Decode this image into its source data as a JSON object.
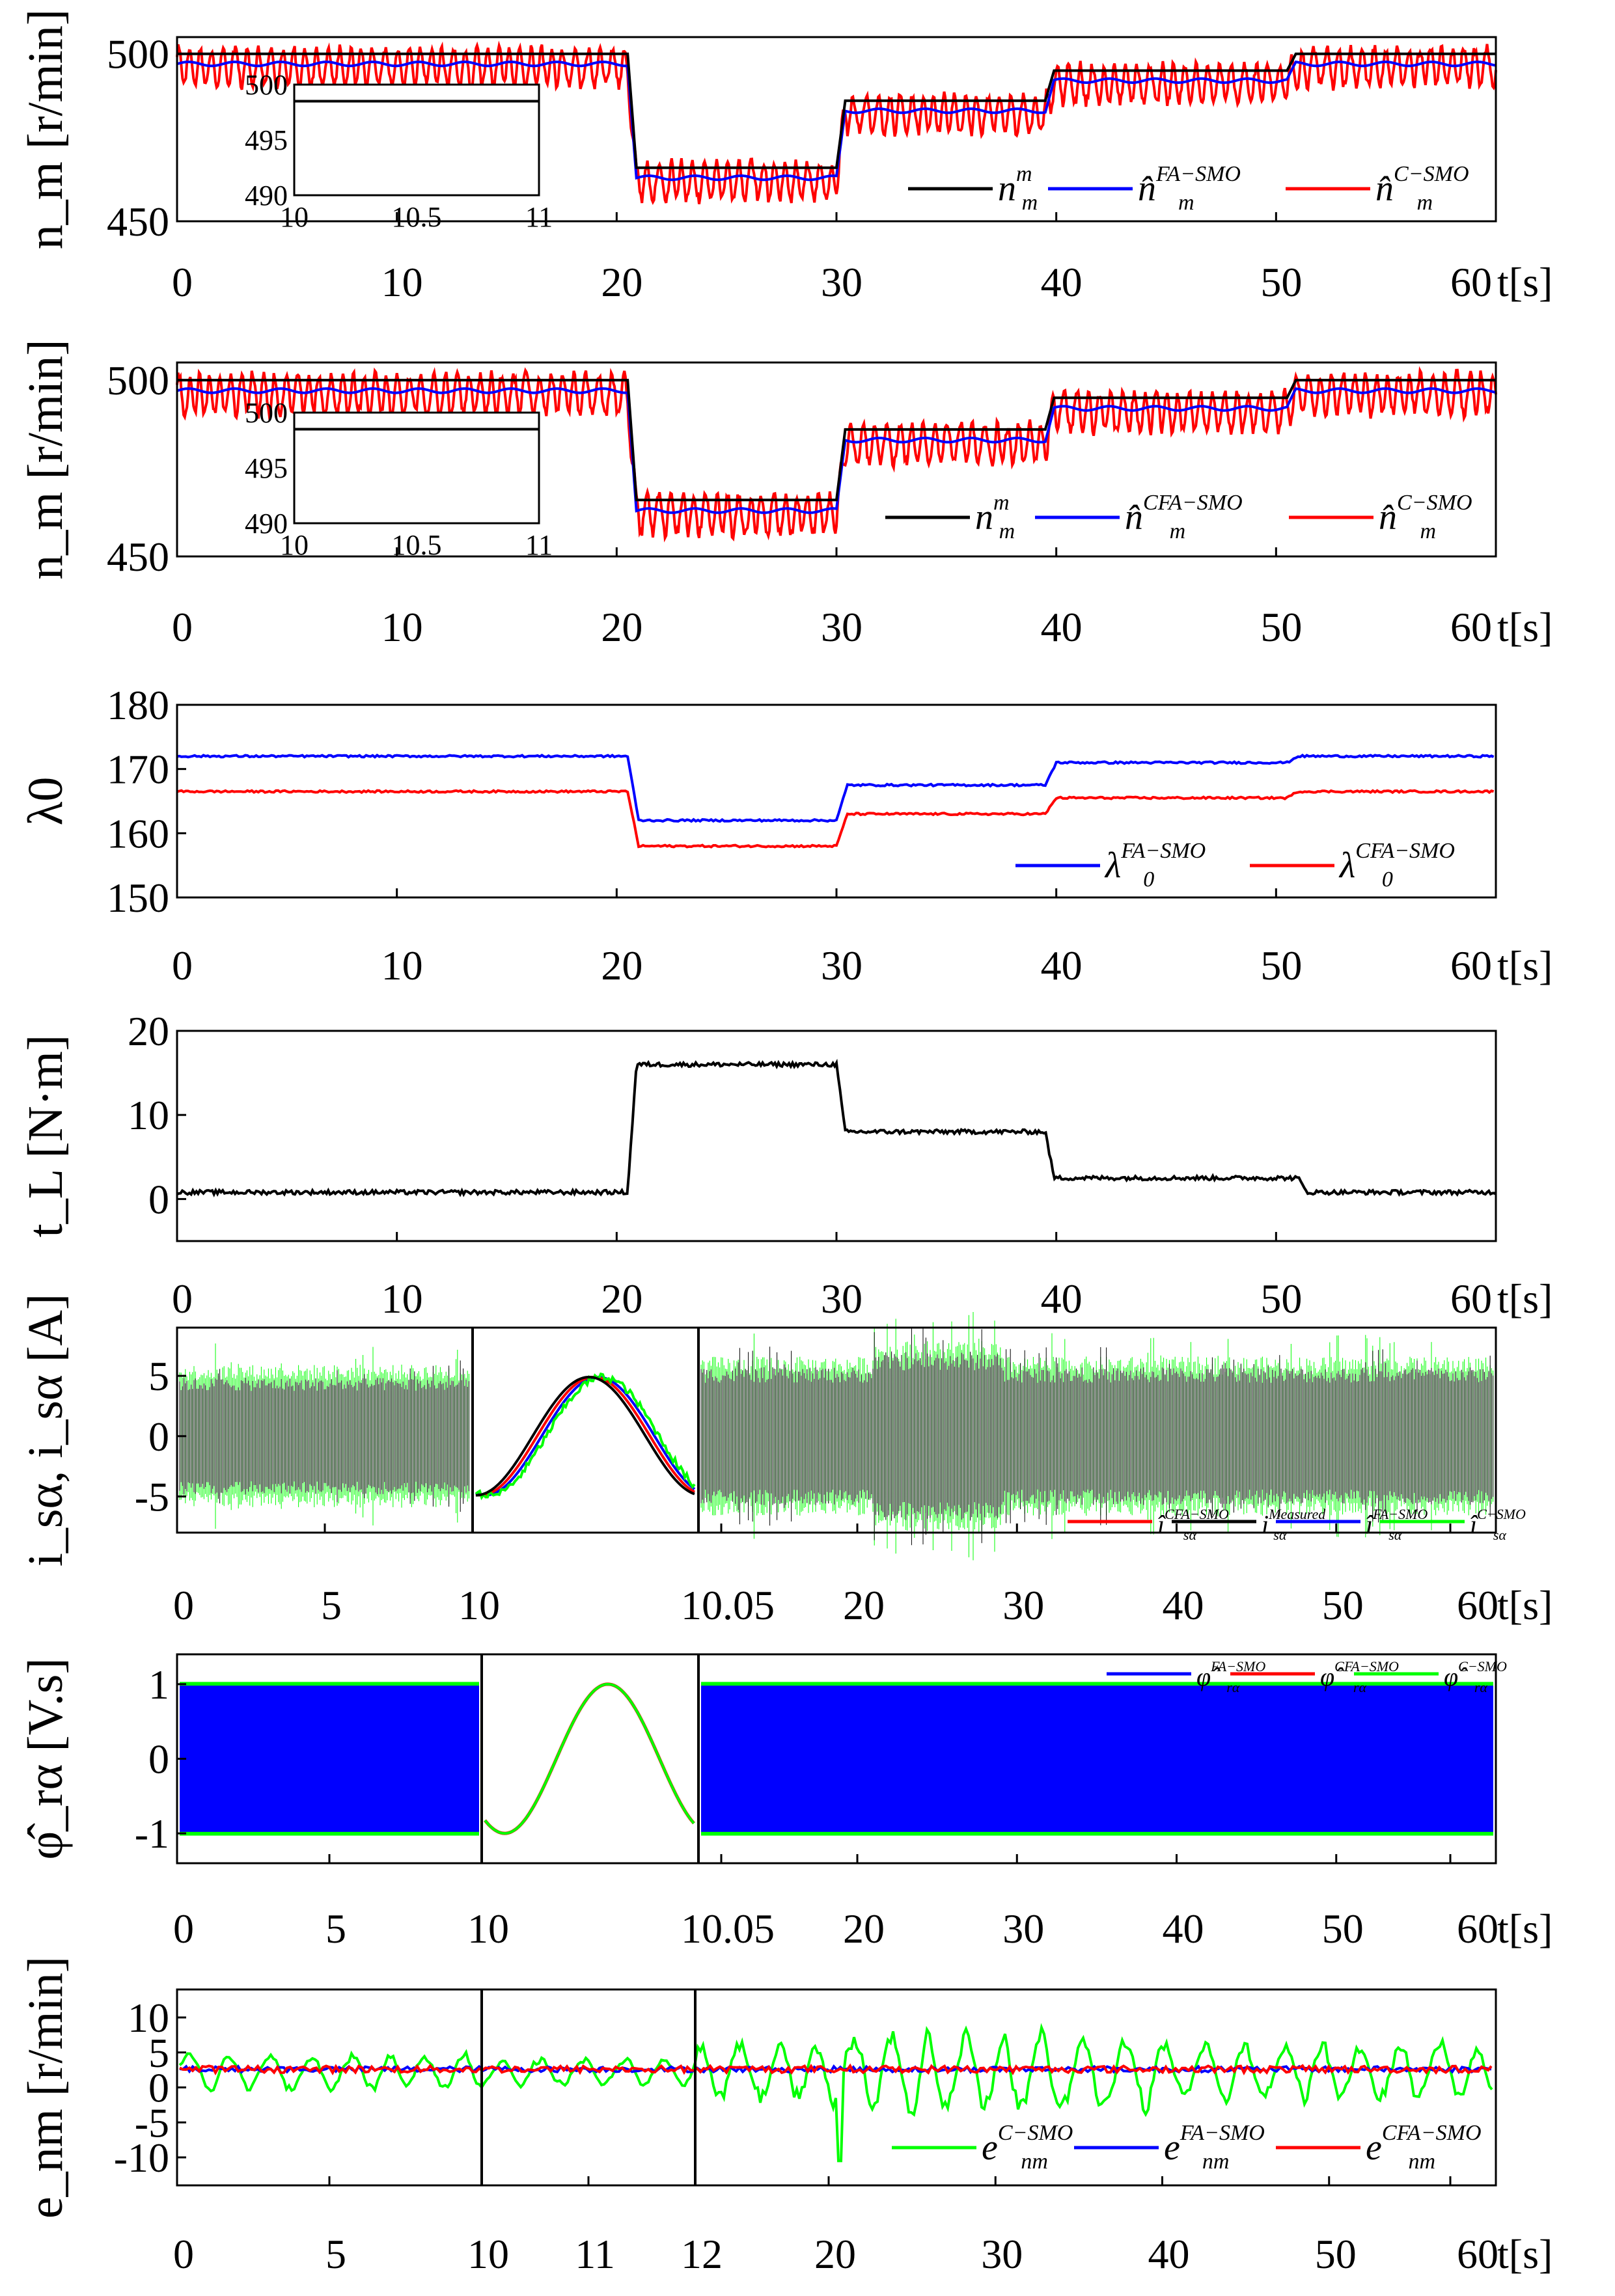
{
  "chart_data": [
    {
      "type": "line",
      "ylabel": "n_m [r/min]",
      "ylim": [
        450,
        505
      ],
      "yticks": [
        500,
        450
      ],
      "xlim": [
        0,
        60
      ],
      "xticks": [
        "0",
        "10",
        "20",
        "30",
        "40",
        "50",
        "60"
      ],
      "x_unit": "t[s]",
      "steps": [
        [
          0,
          500
        ],
        [
          20.5,
          466
        ],
        [
          30,
          486
        ],
        [
          39.5,
          495
        ],
        [
          50.5,
          500
        ]
      ],
      "series": [
        {
          "name": "n_m^m",
          "color": "#000000"
        },
        {
          "name": "n̂_m^{FA-SMO}",
          "color": "#0000ff"
        },
        {
          "name": "n̂_m^{C-SMO}",
          "color": "#ff0000"
        }
      ],
      "inset": {
        "xlim": [
          10,
          11
        ],
        "ylim": [
          490,
          500
        ],
        "xticks": [
          "10",
          "10.5",
          "11"
        ],
        "yticks": [
          "500",
          "495",
          "490"
        ]
      }
    },
    {
      "type": "line",
      "ylabel": "n_m [r/min]",
      "ylim": [
        450,
        505
      ],
      "yticks": [
        500,
        450
      ],
      "xlim": [
        0,
        60
      ],
      "xticks": [
        "0",
        "10",
        "20",
        "30",
        "40",
        "50",
        "60"
      ],
      "x_unit": "t[s]",
      "steps": [
        [
          0,
          500
        ],
        [
          20.5,
          466
        ],
        [
          30,
          486
        ],
        [
          39.5,
          495
        ],
        [
          50.5,
          500
        ]
      ],
      "series": [
        {
          "name": "n_m^m",
          "color": "#000000"
        },
        {
          "name": "n̂_m^{CFA-SMO}",
          "color": "#0000ff"
        },
        {
          "name": "n̂_m^{C-SMO}",
          "color": "#ff0000"
        }
      ],
      "inset": {
        "xlim": [
          10,
          11
        ],
        "ylim": [
          490,
          500
        ],
        "xticks": [
          "10",
          "10.5",
          "11"
        ],
        "yticks": [
          "500",
          "495",
          "490"
        ]
      }
    },
    {
      "type": "line",
      "ylabel": "λ0",
      "ylim": [
        150,
        180
      ],
      "yticks": [
        180,
        170,
        160,
        150
      ],
      "xlim": [
        0,
        60
      ],
      "xticks": [
        "0",
        "10",
        "20",
        "30",
        "40",
        "50",
        "60"
      ],
      "x_unit": "t[s]",
      "series": [
        {
          "name": "λ0^{FA-SMO}",
          "color": "#0000ff",
          "steps": [
            [
              0,
              172
            ],
            [
              20.5,
              162
            ],
            [
              30,
              167.5
            ],
            [
              39.5,
              171
            ],
            [
              50.5,
              172
            ]
          ]
        },
        {
          "name": "λ0^{CFA-SMO}",
          "color": "#ff0000",
          "steps": [
            [
              0,
              166.5
            ],
            [
              20.5,
              158
            ],
            [
              30,
              163
            ],
            [
              39.5,
              165.5
            ],
            [
              50.5,
              166.5
            ]
          ]
        }
      ]
    },
    {
      "type": "line",
      "ylabel": "t_L [N·m]",
      "ylim": [
        -5,
        20
      ],
      "yticks": [
        20,
        10,
        0
      ],
      "xlim": [
        0,
        60
      ],
      "xticks": [
        "0",
        "10",
        "20",
        "30",
        "40",
        "50",
        "60"
      ],
      "x_unit": "t[s]",
      "series": [
        {
          "name": "t_L",
          "color": "#000000",
          "steps": [
            [
              0,
              0.8
            ],
            [
              20.5,
              16
            ],
            [
              30,
              8
            ],
            [
              39.5,
              2.5
            ],
            [
              51,
              0.8
            ]
          ]
        }
      ]
    },
    {
      "type": "line",
      "ylabel": "i_sα, i_sα [A]",
      "ylim": [
        -8,
        9
      ],
      "yticks": [
        "5",
        "0",
        "-5"
      ],
      "xticks_left": [
        "0",
        "5",
        "10"
      ],
      "xticks_mid_end": "10.05",
      "xticks_right": [
        "20",
        "30",
        "40",
        "50",
        "60"
      ],
      "x_unit": "t[s]",
      "series": [
        {
          "name": "î_sα^{CFA-SMO}",
          "color": "#ff0000"
        },
        {
          "name": "i_sα^{Measured}",
          "color": "#000000"
        },
        {
          "name": "î_sα^{FA-SMO}",
          "color": "#0000ff"
        },
        {
          "name": "î_sα^{C-SMO}",
          "color": "#00ff00"
        }
      ]
    },
    {
      "type": "line",
      "ylabel": "φ̂_rα [V.s]",
      "ylim": [
        -1.4,
        1.4
      ],
      "yticks": [
        "1",
        "0",
        "-1"
      ],
      "xticks_left": [
        "0",
        "5",
        "10"
      ],
      "xticks_mid_end": "10.05",
      "xticks_right": [
        "20",
        "30",
        "40",
        "50",
        "60"
      ],
      "x_unit": "t[s]",
      "series": [
        {
          "name": "φ̂_rα^{FA-SMO}",
          "color": "#0000ff"
        },
        {
          "name": "φ̂_rα^{CFA-SMO}",
          "color": "#ff0000"
        },
        {
          "name": "φ̂_rα^{C-SMO}",
          "color": "#00ff00"
        }
      ]
    },
    {
      "type": "line",
      "ylabel": "e_nm [r/min]",
      "ylim": [
        -14,
        14
      ],
      "yticks": [
        "10",
        "5",
        "0",
        "-5",
        "-10"
      ],
      "xticks_left": [
        "0",
        "5"
      ],
      "xticks_mid": [
        "10",
        "11",
        "12"
      ],
      "xticks_right": [
        "20",
        "30",
        "40",
        "50",
        "60"
      ],
      "x_unit": "t[s]",
      "series": [
        {
          "name": "e_nm^{C-SMO}",
          "color": "#00ff00"
        },
        {
          "name": "e_nm^{FA-SMO}",
          "color": "#0000ff"
        },
        {
          "name": "e_nm^{CFA-SMO}",
          "color": "#ff0000"
        }
      ]
    }
  ]
}
